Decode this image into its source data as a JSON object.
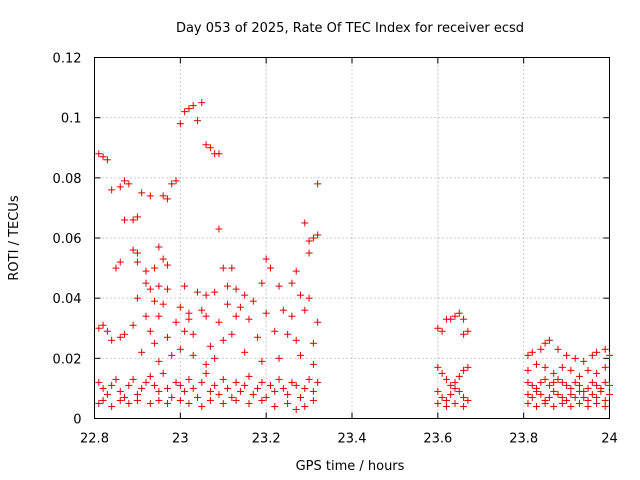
{
  "chart_data": {
    "type": "scatter",
    "title": "Day 053 of 2025, Rate Of TEC Index for receiver ecsd",
    "xlabel": "GPS time / hours",
    "ylabel": "ROTI / TECUs",
    "xlim": [
      22.8,
      24.0
    ],
    "ylim": [
      0,
      0.12
    ],
    "grid": true,
    "marker": "+",
    "color": "#e00000",
    "xticks": [
      "22.8",
      "23",
      "23.2",
      "23.4",
      "23.6",
      "23.8",
      "24"
    ],
    "yticks": [
      "0",
      "0.02",
      "0.04",
      "0.06",
      "0.08",
      "0.1",
      "0.12"
    ],
    "series": [
      {
        "name": "ROTI",
        "points": [
          [
            22.81,
            0.088
          ],
          [
            22.82,
            0.087
          ],
          [
            22.83,
            0.086
          ],
          [
            22.84,
            0.076
          ],
          [
            22.86,
            0.077
          ],
          [
            22.87,
            0.079
          ],
          [
            22.88,
            0.078
          ],
          [
            22.87,
            0.066
          ],
          [
            22.89,
            0.066
          ],
          [
            22.9,
            0.067
          ],
          [
            22.89,
            0.056
          ],
          [
            22.9,
            0.055
          ],
          [
            22.91,
            0.075
          ],
          [
            22.93,
            0.074
          ],
          [
            22.95,
            0.057
          ],
          [
            22.96,
            0.074
          ],
          [
            22.97,
            0.073
          ],
          [
            22.98,
            0.078
          ],
          [
            22.99,
            0.079
          ],
          [
            23.0,
            0.098
          ],
          [
            23.01,
            0.102
          ],
          [
            23.02,
            0.103
          ],
          [
            23.03,
            0.104
          ],
          [
            23.04,
            0.099
          ],
          [
            23.05,
            0.105
          ],
          [
            23.06,
            0.091
          ],
          [
            23.07,
            0.09
          ],
          [
            23.08,
            0.088
          ],
          [
            23.09,
            0.088
          ],
          [
            23.09,
            0.063
          ],
          [
            23.32,
            0.078
          ],
          [
            23.29,
            0.065
          ],
          [
            23.31,
            0.06
          ],
          [
            23.32,
            0.061
          ],
          [
            22.85,
            0.05
          ],
          [
            22.86,
            0.052
          ],
          [
            22.9,
            0.052
          ],
          [
            22.92,
            0.049
          ],
          [
            22.94,
            0.05
          ],
          [
            22.96,
            0.053
          ],
          [
            22.97,
            0.051
          ],
          [
            23.1,
            0.05
          ],
          [
            23.12,
            0.05
          ],
          [
            23.2,
            0.053
          ],
          [
            23.21,
            0.05
          ],
          [
            23.27,
            0.049
          ],
          [
            23.3,
            0.055
          ],
          [
            23.3,
            0.059
          ],
          [
            22.92,
            0.045
          ],
          [
            22.93,
            0.043
          ],
          [
            22.95,
            0.044
          ],
          [
            22.97,
            0.043
          ],
          [
            23.01,
            0.044
          ],
          [
            23.04,
            0.042
          ],
          [
            23.06,
            0.041
          ],
          [
            23.08,
            0.042
          ],
          [
            23.11,
            0.044
          ],
          [
            23.13,
            0.043
          ],
          [
            23.15,
            0.041
          ],
          [
            23.19,
            0.045
          ],
          [
            23.23,
            0.044
          ],
          [
            23.26,
            0.045
          ],
          [
            23.28,
            0.041
          ],
          [
            22.9,
            0.04
          ],
          [
            22.94,
            0.039
          ],
          [
            22.96,
            0.038
          ],
          [
            23.0,
            0.037
          ],
          [
            23.02,
            0.035
          ],
          [
            23.05,
            0.036
          ],
          [
            23.11,
            0.038
          ],
          [
            23.14,
            0.037
          ],
          [
            23.17,
            0.039
          ],
          [
            23.24,
            0.036
          ],
          [
            23.3,
            0.04
          ],
          [
            22.92,
            0.034
          ],
          [
            22.95,
            0.034
          ],
          [
            22.99,
            0.032
          ],
          [
            23.02,
            0.033
          ],
          [
            23.06,
            0.034
          ],
          [
            23.09,
            0.032
          ],
          [
            23.13,
            0.034
          ],
          [
            23.16,
            0.033
          ],
          [
            23.2,
            0.035
          ],
          [
            23.26,
            0.034
          ],
          [
            23.29,
            0.036
          ],
          [
            23.32,
            0.032
          ],
          [
            22.81,
            0.03
          ],
          [
            22.82,
            0.031
          ],
          [
            22.83,
            0.029
          ],
          [
            22.84,
            0.026
          ],
          [
            22.86,
            0.027
          ],
          [
            22.87,
            0.028
          ],
          [
            22.89,
            0.031
          ],
          [
            22.93,
            0.029
          ],
          [
            22.94,
            0.025
          ],
          [
            22.97,
            0.027
          ],
          [
            23.01,
            0.029
          ],
          [
            23.03,
            0.028
          ],
          [
            23.07,
            0.024
          ],
          [
            23.1,
            0.026
          ],
          [
            23.12,
            0.028
          ],
          [
            23.18,
            0.027
          ],
          [
            23.22,
            0.029
          ],
          [
            23.25,
            0.028
          ],
          [
            23.27,
            0.026
          ],
          [
            23.31,
            0.025
          ],
          [
            22.91,
            0.022
          ],
          [
            22.95,
            0.019
          ],
          [
            22.98,
            0.021
          ],
          [
            23.0,
            0.023
          ],
          [
            23.03,
            0.021
          ],
          [
            23.06,
            0.018
          ],
          [
            23.08,
            0.02
          ],
          [
            23.15,
            0.022
          ],
          [
            23.19,
            0.019
          ],
          [
            23.23,
            0.02
          ],
          [
            23.28,
            0.021
          ],
          [
            23.31,
            0.018
          ],
          [
            22.81,
            0.012
          ],
          [
            22.82,
            0.01
          ],
          [
            22.83,
            0.008
          ],
          [
            22.84,
            0.011
          ],
          [
            22.85,
            0.013
          ],
          [
            22.86,
            0.009
          ],
          [
            22.87,
            0.007
          ],
          [
            22.88,
            0.011
          ],
          [
            22.89,
            0.013
          ],
          [
            22.9,
            0.008
          ],
          [
            22.91,
            0.01
          ],
          [
            22.92,
            0.012
          ],
          [
            22.93,
            0.014
          ],
          [
            22.94,
            0.011
          ],
          [
            22.95,
            0.009
          ],
          [
            22.96,
            0.015
          ],
          [
            22.97,
            0.01
          ],
          [
            22.98,
            0.007
          ],
          [
            22.99,
            0.012
          ],
          [
            23.0,
            0.011
          ],
          [
            23.01,
            0.009
          ],
          [
            23.02,
            0.013
          ],
          [
            23.03,
            0.01
          ],
          [
            23.04,
            0.007
          ],
          [
            23.05,
            0.012
          ],
          [
            23.06,
            0.015
          ],
          [
            23.07,
            0.009
          ],
          [
            23.08,
            0.011
          ],
          [
            23.09,
            0.008
          ],
          [
            23.1,
            0.013
          ],
          [
            23.11,
            0.01
          ],
          [
            23.12,
            0.007
          ],
          [
            23.13,
            0.012
          ],
          [
            23.14,
            0.009
          ],
          [
            23.15,
            0.011
          ],
          [
            23.16,
            0.014
          ],
          [
            23.17,
            0.008
          ],
          [
            23.18,
            0.01
          ],
          [
            23.19,
            0.012
          ],
          [
            23.2,
            0.007
          ],
          [
            23.21,
            0.011
          ],
          [
            23.22,
            0.009
          ],
          [
            23.23,
            0.013
          ],
          [
            23.24,
            0.01
          ],
          [
            23.25,
            0.008
          ],
          [
            23.26,
            0.012
          ],
          [
            23.27,
            0.011
          ],
          [
            23.28,
            0.007
          ],
          [
            23.29,
            0.01
          ],
          [
            23.3,
            0.013
          ],
          [
            23.31,
            0.009
          ],
          [
            23.32,
            0.012
          ],
          [
            22.81,
            0.005
          ],
          [
            22.82,
            0.006
          ],
          [
            22.84,
            0.004
          ],
          [
            22.86,
            0.006
          ],
          [
            22.88,
            0.005
          ],
          [
            22.9,
            0.006
          ],
          [
            22.93,
            0.005
          ],
          [
            22.95,
            0.006
          ],
          [
            22.97,
            0.005
          ],
          [
            23.0,
            0.006
          ],
          [
            23.02,
            0.005
          ],
          [
            23.05,
            0.004
          ],
          [
            23.07,
            0.006
          ],
          [
            23.1,
            0.005
          ],
          [
            23.13,
            0.006
          ],
          [
            23.16,
            0.005
          ],
          [
            23.19,
            0.006
          ],
          [
            23.22,
            0.004
          ],
          [
            23.25,
            0.005
          ],
          [
            23.27,
            0.003
          ],
          [
            23.29,
            0.004
          ],
          [
            23.31,
            0.006
          ],
          [
            23.6,
            0.03
          ],
          [
            23.61,
            0.029
          ],
          [
            23.62,
            0.033
          ],
          [
            23.63,
            0.033
          ],
          [
            23.64,
            0.034
          ],
          [
            23.65,
            0.035
          ],
          [
            23.66,
            0.033
          ],
          [
            23.66,
            0.028
          ],
          [
            23.67,
            0.029
          ],
          [
            23.6,
            0.017
          ],
          [
            23.61,
            0.015
          ],
          [
            23.62,
            0.013
          ],
          [
            23.63,
            0.011
          ],
          [
            23.64,
            0.012
          ],
          [
            23.65,
            0.014
          ],
          [
            23.66,
            0.016
          ],
          [
            23.67,
            0.017
          ],
          [
            23.6,
            0.009
          ],
          [
            23.61,
            0.007
          ],
          [
            23.62,
            0.006
          ],
          [
            23.63,
            0.008
          ],
          [
            23.64,
            0.01
          ],
          [
            23.65,
            0.009
          ],
          [
            23.66,
            0.007
          ],
          [
            23.67,
            0.006
          ],
          [
            23.6,
            0.005
          ],
          [
            23.62,
            0.004
          ],
          [
            23.64,
            0.005
          ],
          [
            23.66,
            0.004
          ],
          [
            23.81,
            0.021
          ],
          [
            23.82,
            0.022
          ],
          [
            23.84,
            0.023
          ],
          [
            23.85,
            0.025
          ],
          [
            23.86,
            0.026
          ],
          [
            23.88,
            0.023
          ],
          [
            23.9,
            0.021
          ],
          [
            23.92,
            0.02
          ],
          [
            23.94,
            0.019
          ],
          [
            23.96,
            0.021
          ],
          [
            23.97,
            0.022
          ],
          [
            23.99,
            0.023
          ],
          [
            24.0,
            0.021
          ],
          [
            23.81,
            0.016
          ],
          [
            23.83,
            0.018
          ],
          [
            23.85,
            0.017
          ],
          [
            23.87,
            0.015
          ],
          [
            23.89,
            0.017
          ],
          [
            23.91,
            0.016
          ],
          [
            23.93,
            0.014
          ],
          [
            23.95,
            0.016
          ],
          [
            23.97,
            0.015
          ],
          [
            23.99,
            0.017
          ],
          [
            23.81,
            0.012
          ],
          [
            23.82,
            0.011
          ],
          [
            23.83,
            0.01
          ],
          [
            23.84,
            0.012
          ],
          [
            23.85,
            0.013
          ],
          [
            23.86,
            0.011
          ],
          [
            23.87,
            0.012
          ],
          [
            23.88,
            0.013
          ],
          [
            23.89,
            0.012
          ],
          [
            23.9,
            0.011
          ],
          [
            23.91,
            0.01
          ],
          [
            23.92,
            0.012
          ],
          [
            23.93,
            0.011
          ],
          [
            23.94,
            0.009
          ],
          [
            23.95,
            0.01
          ],
          [
            23.96,
            0.012
          ],
          [
            23.97,
            0.011
          ],
          [
            23.98,
            0.01
          ],
          [
            23.99,
            0.012
          ],
          [
            24.0,
            0.011
          ],
          [
            23.81,
            0.008
          ],
          [
            23.82,
            0.007
          ],
          [
            23.83,
            0.009
          ],
          [
            23.84,
            0.008
          ],
          [
            23.85,
            0.006
          ],
          [
            23.86,
            0.007
          ],
          [
            23.87,
            0.009
          ],
          [
            23.88,
            0.008
          ],
          [
            23.89,
            0.007
          ],
          [
            23.9,
            0.006
          ],
          [
            23.91,
            0.008
          ],
          [
            23.92,
            0.007
          ],
          [
            23.93,
            0.009
          ],
          [
            23.94,
            0.007
          ],
          [
            23.95,
            0.006
          ],
          [
            23.96,
            0.008
          ],
          [
            23.97,
            0.007
          ],
          [
            23.98,
            0.009
          ],
          [
            23.99,
            0.006
          ],
          [
            24.0,
            0.008
          ],
          [
            23.81,
            0.005
          ],
          [
            23.83,
            0.004
          ],
          [
            23.85,
            0.005
          ],
          [
            23.87,
            0.004
          ],
          [
            23.89,
            0.005
          ],
          [
            23.91,
            0.004
          ],
          [
            23.93,
            0.005
          ],
          [
            23.95,
            0.004
          ],
          [
            23.97,
            0.005
          ],
          [
            23.99,
            0.004
          ]
        ]
      }
    ]
  }
}
